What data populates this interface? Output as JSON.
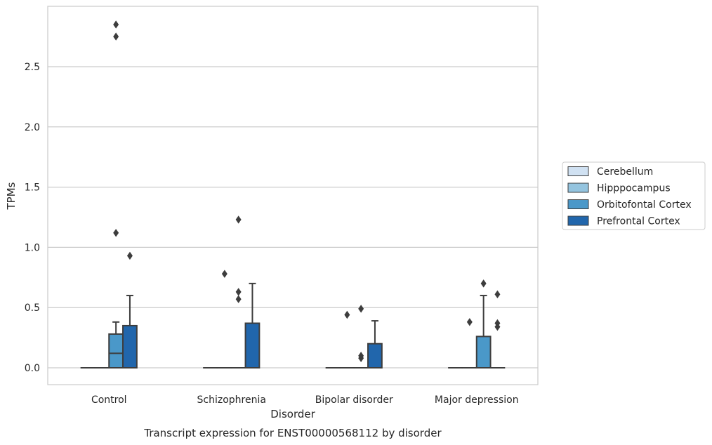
{
  "chart_data": {
    "type": "box",
    "title": "Transcript expression for ENST00000568112 by disorder",
    "xlabel": "Disorder",
    "ylabel": "TPMs",
    "categories": [
      "Control",
      "Schizophrenia",
      "Bipolar disorder",
      "Major depression"
    ],
    "yticks": [
      "0.0",
      "0.5",
      "1.0",
      "1.5",
      "2.0",
      "2.5"
    ],
    "ylim": [
      -0.14,
      2.99
    ],
    "grid": true,
    "legend_position": "right",
    "series": [
      {
        "name": "Cerebellum",
        "color": "#d0e1f2",
        "boxes": [
          {
            "q1": 0,
            "median": 0,
            "q3": 0,
            "whisker_low": 0,
            "whisker_high": 0,
            "outliers": []
          },
          {
            "q1": 0,
            "median": 0,
            "q3": 0,
            "whisker_low": 0,
            "whisker_high": 0,
            "outliers": []
          },
          {
            "q1": 0,
            "median": 0,
            "q3": 0,
            "whisker_low": 0,
            "whisker_high": 0,
            "outliers": []
          },
          {
            "q1": 0,
            "median": 0,
            "q3": 0,
            "whisker_low": 0,
            "whisker_high": 0,
            "outliers": []
          }
        ]
      },
      {
        "name": "Hipppocampus",
        "color": "#94c4df",
        "boxes": [
          {
            "q1": 0,
            "median": 0,
            "q3": 0,
            "whisker_low": 0,
            "whisker_high": 0,
            "outliers": []
          },
          {
            "q1": 0,
            "median": 0,
            "q3": 0,
            "whisker_low": 0,
            "whisker_high": 0,
            "outliers": [
              0.78
            ]
          },
          {
            "q1": 0,
            "median": 0,
            "q3": 0,
            "whisker_low": 0,
            "whisker_high": 0,
            "outliers": [
              0.44
            ]
          },
          {
            "q1": 0,
            "median": 0,
            "q3": 0,
            "whisker_low": 0,
            "whisker_high": 0,
            "outliers": [
              0.38
            ]
          }
        ]
      },
      {
        "name": "Orbitofontal Cortex",
        "color": "#4a98c9",
        "boxes": [
          {
            "q1": 0,
            "median": 0.12,
            "q3": 0.28,
            "whisker_low": 0,
            "whisker_high": 0.38,
            "outliers": [
              1.12,
              2.75,
              2.85
            ]
          },
          {
            "q1": 0,
            "median": 0,
            "q3": 0,
            "whisker_low": 0,
            "whisker_high": 0,
            "outliers": [
              0.57,
              0.63,
              1.23
            ]
          },
          {
            "q1": 0,
            "median": 0,
            "q3": 0,
            "whisker_low": 0,
            "whisker_high": 0,
            "outliers": [
              0.08,
              0.1,
              0.49
            ]
          },
          {
            "q1": 0,
            "median": 0,
            "q3": 0.26,
            "whisker_low": 0,
            "whisker_high": 0.6,
            "outliers": [
              0.7
            ]
          }
        ]
      },
      {
        "name": "Prefrontal Cortex",
        "color": "#2166ac",
        "boxes": [
          {
            "q1": 0,
            "median": 0,
            "q3": 0.35,
            "whisker_low": 0,
            "whisker_high": 0.6,
            "outliers": [
              0.93
            ]
          },
          {
            "q1": 0,
            "median": 0,
            "q3": 0.37,
            "whisker_low": 0,
            "whisker_high": 0.7,
            "outliers": []
          },
          {
            "q1": 0,
            "median": 0,
            "q3": 0.2,
            "whisker_low": 0,
            "whisker_high": 0.39,
            "outliers": []
          },
          {
            "q1": 0,
            "median": 0,
            "q3": 0,
            "whisker_low": 0,
            "whisker_high": 0,
            "outliers": [
              0.34,
              0.37,
              0.61
            ]
          }
        ]
      }
    ]
  }
}
